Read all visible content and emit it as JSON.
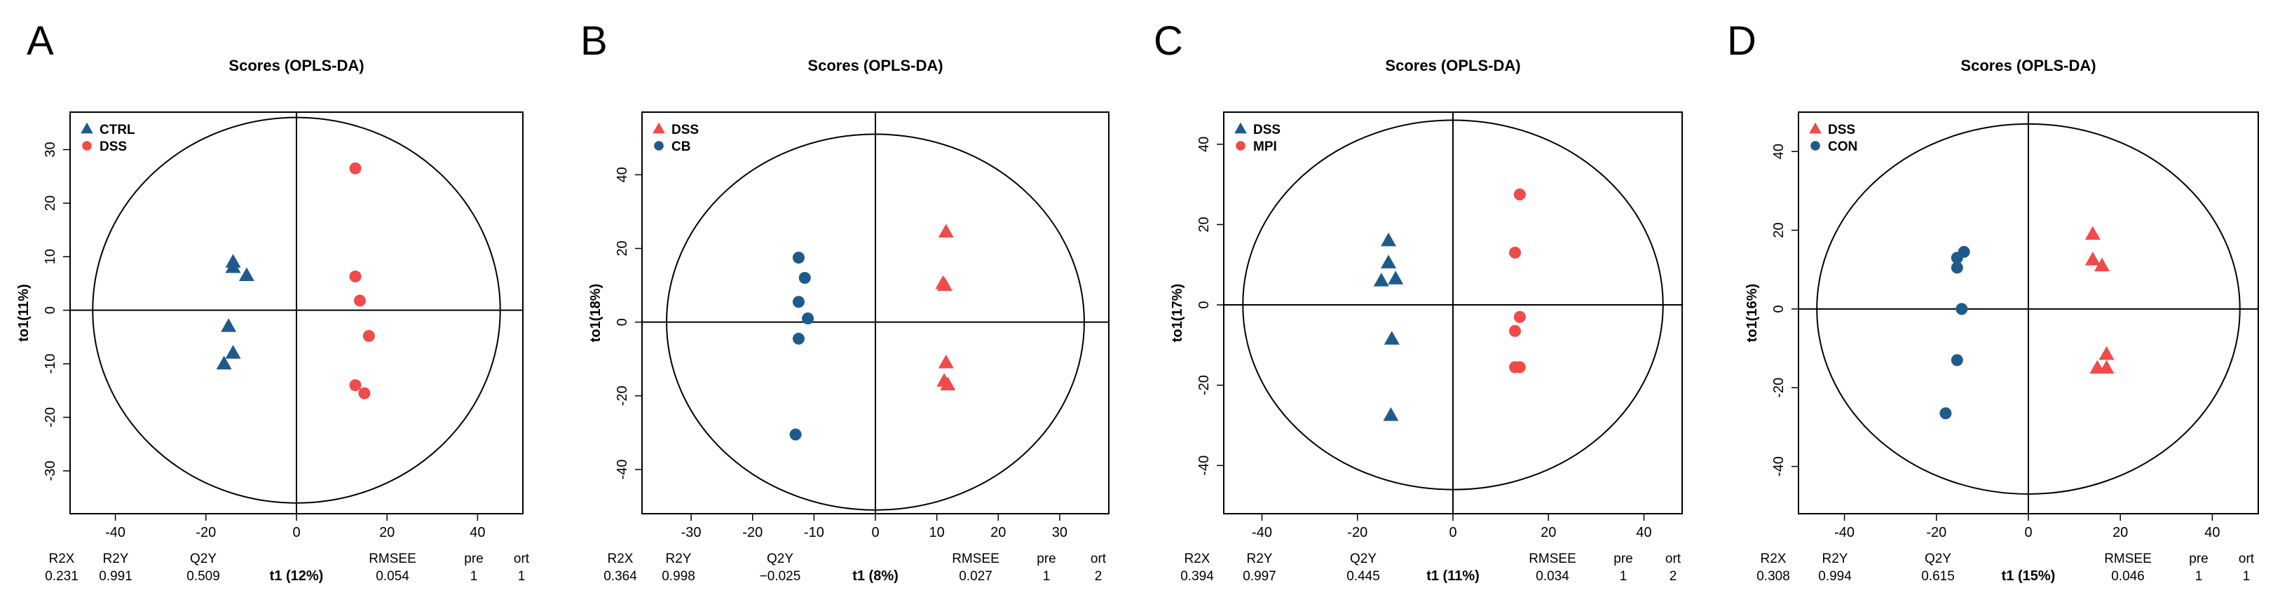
{
  "colors": {
    "blue": "#1f5a8c",
    "red": "#f04a4a",
    "axis": "#000000"
  },
  "chart_data": [
    {
      "type": "scatter",
      "panel_label": "A",
      "title": "Scores (OPLS-DA)",
      "xlabel": "t1 (12%)",
      "ylabel": "to1(11%)",
      "xlim": [
        -50,
        50
      ],
      "ylim": [
        -38,
        37
      ],
      "xticks": [
        -40,
        -20,
        0,
        20,
        40
      ],
      "yticks": [
        -30,
        -20,
        -10,
        0,
        10,
        20,
        30
      ],
      "ellipse": {
        "rx": 45,
        "ry": 36
      },
      "legend": "top-left",
      "series": [
        {
          "name": "CTRL",
          "marker": "triangle",
          "color": "#1f5a8c",
          "points": [
            [
              -14,
              9
            ],
            [
              -14,
              8
            ],
            [
              -11,
              6.5
            ],
            [
              -15,
              -3
            ],
            [
              -14,
              -8
            ],
            [
              -16,
              -10
            ]
          ]
        },
        {
          "name": "DSS",
          "marker": "circle",
          "color": "#f04a4a",
          "points": [
            [
              13,
              26.5
            ],
            [
              13,
              6.3
            ],
            [
              14,
              1.8
            ],
            [
              16,
              -4.8
            ],
            [
              13,
              -14
            ],
            [
              15,
              -15.5
            ]
          ]
        }
      ],
      "stats": {
        "headers": [
          "R2X",
          "R2Y",
          "Q2Y",
          "RMSEE",
          "pre",
          "ort"
        ],
        "values": [
          "0.231",
          "0.991",
          "0.509",
          "0.054",
          "1",
          "1"
        ]
      }
    },
    {
      "type": "scatter",
      "panel_label": "B",
      "title": "Scores (OPLS-DA)",
      "xlabel": "t1 (8%)",
      "ylabel": "to1(18%)",
      "xlim": [
        -38,
        38
      ],
      "ylim": [
        -52,
        57
      ],
      "xticks": [
        -30,
        -20,
        -10,
        0,
        10,
        20,
        30
      ],
      "yticks": [
        -40,
        -20,
        0,
        20,
        40
      ],
      "ellipse": {
        "rx": 34,
        "ry": 51
      },
      "legend": "top-left",
      "series": [
        {
          "name": "DSS",
          "marker": "triangle",
          "color": "#f04a4a",
          "points": [
            [
              11.5,
              24.5
            ],
            [
              11,
              10.5
            ],
            [
              11.3,
              10
            ],
            [
              11.5,
              -11
            ],
            [
              11.2,
              -16
            ],
            [
              11.8,
              -17
            ]
          ]
        },
        {
          "name": "CB",
          "marker": "circle",
          "color": "#1f5a8c",
          "points": [
            [
              -12.5,
              17.5
            ],
            [
              -11.5,
              12
            ],
            [
              -12.5,
              5.5
            ],
            [
              -11,
              1
            ],
            [
              -12.5,
              -4.5
            ],
            [
              -13,
              -30.5
            ]
          ]
        }
      ],
      "stats": {
        "headers": [
          "R2X",
          "R2Y",
          "Q2Y",
          "RMSEE",
          "pre",
          "ort"
        ],
        "values": [
          "0.364",
          "0.998",
          "−0.025",
          "0.027",
          "1",
          "2"
        ]
      }
    },
    {
      "type": "scatter",
      "panel_label": "C",
      "title": "Scores (OPLS-DA)",
      "xlabel": "t1 (11%)",
      "ylabel": "to1(17%)",
      "xlim": [
        -48,
        48
      ],
      "ylim": [
        -52,
        48
      ],
      "xticks": [
        -40,
        -20,
        0,
        20,
        40
      ],
      "yticks": [
        -40,
        -20,
        0,
        20,
        40
      ],
      "ellipse": {
        "rx": 44,
        "ry": 46
      },
      "legend": "top-left",
      "series": [
        {
          "name": "DSS",
          "marker": "triangle",
          "color": "#1f5a8c",
          "points": [
            [
              -13.5,
              16
            ],
            [
              -13.5,
              10.5
            ],
            [
              -12,
              6.5
            ],
            [
              -15,
              6
            ],
            [
              -12.8,
              -8.5
            ],
            [
              -13,
              -27.5
            ]
          ]
        },
        {
          "name": "MPI",
          "marker": "circle",
          "color": "#f04a4a",
          "points": [
            [
              14,
              27.5
            ],
            [
              13,
              13
            ],
            [
              14,
              -3
            ],
            [
              13,
              -6.5
            ],
            [
              13,
              -15.5
            ],
            [
              14,
              -15.5
            ]
          ]
        }
      ],
      "stats": {
        "headers": [
          "R2X",
          "R2Y",
          "Q2Y",
          "RMSEE",
          "pre",
          "ort"
        ],
        "values": [
          "0.394",
          "0.997",
          "0.445",
          "0.034",
          "1",
          "2"
        ]
      }
    },
    {
      "type": "scatter",
      "panel_label": "D",
      "title": "Scores (OPLS-DA)",
      "xlabel": "t1 (15%)",
      "ylabel": "to1(16%)",
      "xlim": [
        -50,
        50
      ],
      "ylim": [
        -52,
        50
      ],
      "xticks": [
        -40,
        -20,
        0,
        20,
        40
      ],
      "yticks": [
        -40,
        -20,
        0,
        20,
        40
      ],
      "ellipse": {
        "rx": 46,
        "ry": 47
      },
      "legend": "top-left",
      "series": [
        {
          "name": "DSS",
          "marker": "triangle",
          "color": "#f04a4a",
          "points": [
            [
              14,
              19
            ],
            [
              14,
              12.5
            ],
            [
              16,
              11
            ],
            [
              17,
              -11.5
            ],
            [
              15,
              -15
            ],
            [
              17,
              -15
            ]
          ]
        },
        {
          "name": "CON",
          "marker": "circle",
          "color": "#1f5a8c",
          "points": [
            [
              -15.5,
              13
            ],
            [
              -14,
              14.5
            ],
            [
              -15.5,
              10.5
            ],
            [
              -14.5,
              0
            ],
            [
              -15.5,
              -13
            ],
            [
              -18,
              -26.5
            ]
          ]
        }
      ],
      "stats": {
        "headers": [
          "R2X",
          "R2Y",
          "Q2Y",
          "RMSEE",
          "pre",
          "ort"
        ],
        "values": [
          "0.308",
          "0.994",
          "0.615",
          "0.046",
          "1",
          "1"
        ]
      }
    }
  ]
}
